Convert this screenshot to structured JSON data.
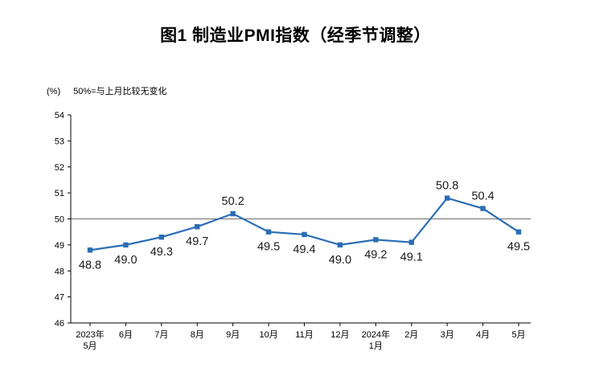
{
  "title": "图1  制造业PMI指数（经季节调整）",
  "axis_note_unit": "(%)",
  "axis_note_legend": "50%=与上月比较无变化",
  "chart_data": {
    "type": "line",
    "title": "图1  制造业PMI指数（经季节调整）",
    "series_name": "制造业PMI",
    "categories": [
      "2023年\n5月",
      "6月",
      "7月",
      "8月",
      "9月",
      "10月",
      "11月",
      "12月",
      "2024年\n1月",
      "2月",
      "3月",
      "4月",
      "5月"
    ],
    "values": [
      48.8,
      49.0,
      49.3,
      49.7,
      50.2,
      49.5,
      49.4,
      49.0,
      49.2,
      49.1,
      50.8,
      50.4,
      49.5
    ],
    "ylim": [
      46,
      54
    ],
    "ytick_step": 1,
    "reference_line": 50,
    "reference_note": "50%=与上月比较无变化",
    "grid": false,
    "legend": "none",
    "marker": "square",
    "line_color": "#2A6DB5",
    "axis_color": "#000000",
    "reference_line_color": "#6e6e6e",
    "label_color": "#1a1a1a"
  }
}
